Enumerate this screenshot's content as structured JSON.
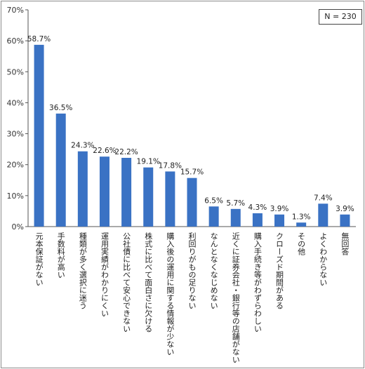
{
  "chart_data": {
    "type": "bar",
    "categories": [
      "元本保証がない",
      "手数料が高い",
      "種類が多く選択に迷う",
      "運用実績がわかりにくい",
      "公社債に比べて安心できない",
      "株式に比べて面白さに欠ける",
      "購入後の運用に関する情報が少ない",
      "利回りがもの足りない",
      "なんとなくなじめない",
      "近くに証券会社・銀行等の店舗がない",
      "購入手続き等がわずらわしい",
      "クローズド期間がある",
      "その他",
      "よくわからない",
      "無回答"
    ],
    "values": [
      58.7,
      36.5,
      24.3,
      22.6,
      22.2,
      19.1,
      17.8,
      15.7,
      6.5,
      5.7,
      4.3,
      3.9,
      1.3,
      7.4,
      3.9
    ],
    "value_labels": [
      "58.7%",
      "36.5%",
      "24.3%",
      "22.6%",
      "22.2%",
      "19.1%",
      "17.8%",
      "15.7%",
      "6.5%",
      "5.7%",
      "4.3%",
      "3.9%",
      "1.3%",
      "7.4%",
      "3.9%"
    ],
    "y_ticks": [
      "0%",
      "10%",
      "20%",
      "30%",
      "40%",
      "50%",
      "60%",
      "70%"
    ],
    "ylim": [
      0,
      70
    ],
    "grid": false,
    "bar_color": "#3a72c4",
    "sample_size": "N = 230"
  }
}
